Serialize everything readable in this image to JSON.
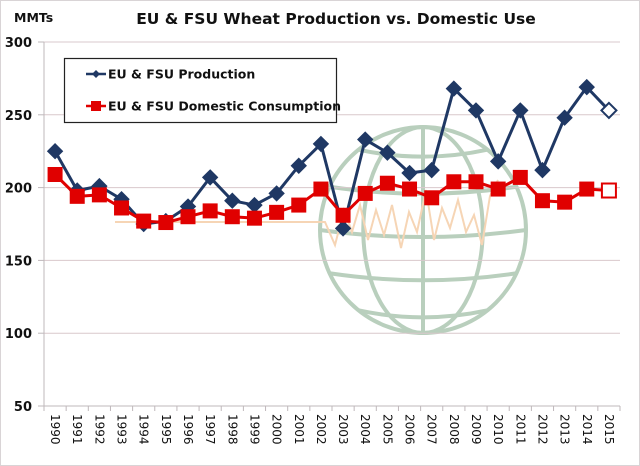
{
  "chart_data": {
    "type": "line",
    "title": "EU & FSU Wheat Production vs. Domestic Use",
    "xlabel": "",
    "ylabel": "MMTs",
    "ylim": [
      50,
      300
    ],
    "yticks": [
      50,
      100,
      150,
      200,
      250,
      300
    ],
    "grid": true,
    "legend_position": "top-left",
    "categories": [
      "1990",
      "1991",
      "1992",
      "1993",
      "1994",
      "1995",
      "1996",
      "1997",
      "1998",
      "1999",
      "2000",
      "2001",
      "2002",
      "2003",
      "2004",
      "2005",
      "2006",
      "2007",
      "2008",
      "2009",
      "2010",
      "2011",
      "2012",
      "2013",
      "2014",
      "2015"
    ],
    "series": [
      {
        "name": "EU & FSU Production",
        "color": "#1f3864",
        "marker": "diamond",
        "values": [
          225,
          198,
          201,
          192,
          175,
          177,
          187,
          207,
          191,
          188,
          196,
          215,
          230,
          172,
          233,
          224,
          210,
          212,
          268,
          253,
          218,
          253,
          212,
          248,
          269,
          253
        ],
        "last_point_hollow": true
      },
      {
        "name": "EU & FSU Domestic Consumption",
        "color": "#e00000",
        "marker": "square",
        "values": [
          209,
          194,
          195,
          186,
          177,
          176,
          180,
          184,
          180,
          179,
          183,
          188,
          199,
          181,
          196,
          203,
          199,
          193,
          204,
          204,
          199,
          207,
          191,
          190,
          199,
          198
        ],
        "last_point_hollow": true
      }
    ],
    "watermark": {
      "globe_color": "#b9cfbd",
      "zigzag_color": "#f6d5b5"
    },
    "gridline_color": "#d9c8cc",
    "axis_color": "#bfb8bb"
  }
}
